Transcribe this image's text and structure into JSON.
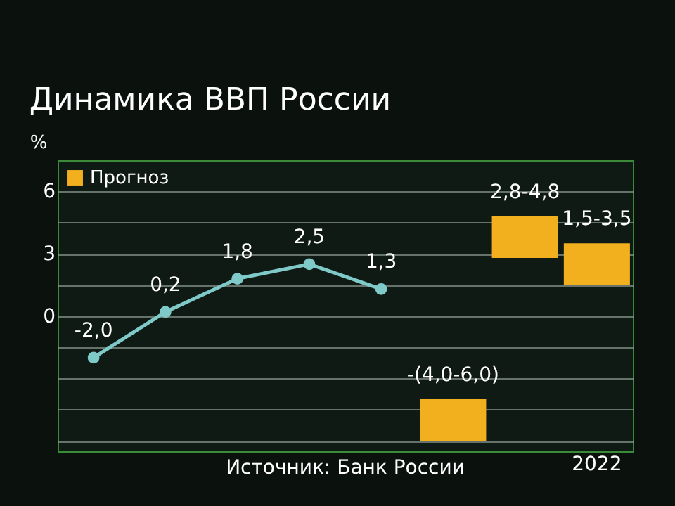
{
  "chart_data": {
    "type": "bar",
    "title": "Динамика ВВП России",
    "ylabel": "%",
    "categories": [
      null,
      null,
      null,
      null,
      null,
      null,
      null,
      "2022"
    ],
    "series": [
      {
        "type": "line",
        "color": "#7fc9c9",
        "values": [
          -2.0,
          0.2,
          1.8,
          2.5,
          1.3,
          null,
          null,
          null
        ],
        "value_labels": [
          "-2,0",
          "0,2",
          "1,8",
          "2,5",
          "1,3",
          null,
          null,
          null
        ],
        "marker": "circle"
      },
      {
        "name": "Прогноз",
        "color": "#f2b01e",
        "base": [
          null,
          null,
          null,
          null,
          null,
          -6.0,
          2.8,
          1.5
        ],
        "values": [
          null,
          null,
          null,
          null,
          null,
          2.0,
          2.0,
          2.0
        ],
        "value_labels": [
          null,
          null,
          null,
          null,
          null,
          "-(4,0-6,0)",
          "2,8-4,8",
          "1,5-3,5"
        ]
      }
    ],
    "ylim": [
      -6.5,
      7.5
    ],
    "yticks": [
      {
        "value": -6,
        "label": null
      },
      {
        "value": -4.5,
        "label": null
      },
      {
        "value": -3,
        "label": null
      },
      {
        "value": -1.5,
        "label": null
      },
      0,
      {
        "value": 1.5,
        "label": null
      },
      3,
      {
        "value": 4.5,
        "label": null
      },
      6
    ],
    "grid": "y",
    "legend": "top left",
    "annotations": [
      "Источник: Банк России"
    ]
  }
}
